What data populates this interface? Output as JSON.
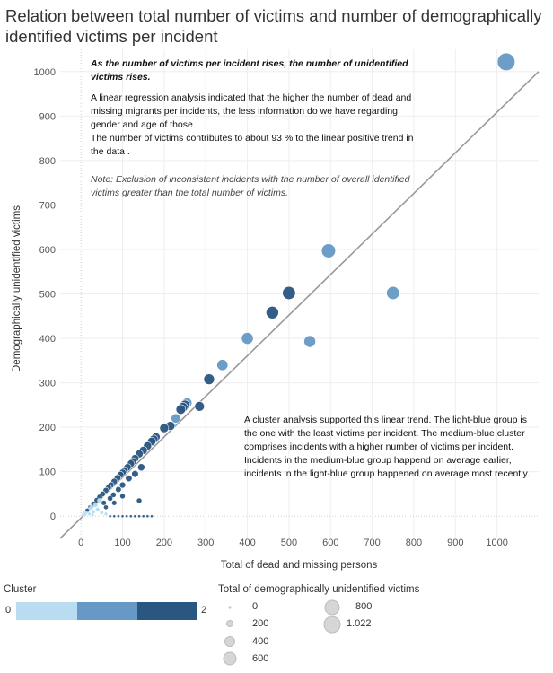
{
  "title": "Relation between total number of victims and number of demographically identified victims per incident",
  "annotation_top": {
    "italic_bold": "As the number of victims per incident rises, the number of unidentified victims rises.",
    "regression": "A linear regression analysis indicated that the higher the number of dead and missing migrants per incidents, the less information do we have regarding gender and age of those.",
    "contribution": "The number of victims contributes to about 93 % to the linear positive trend in the data .",
    "note": "Note: Exclusion of inconsistent incidents with the number of overall identified victims greater than the total number of victims."
  },
  "annotation_cluster": "A cluster analysis supported this linear trend. The light-blue group is the one with the least victims per incident. The medium-blue cluster comprises incidents with a higher number of victims per incident. Incidents in the medium-blue group happend on average earlier, incidents in the light-blue group happened on average most recently.",
  "legend": {
    "cluster_title": "Cluster",
    "cluster_min": "0",
    "cluster_max": "2",
    "cluster_colors": [
      "#b9dcf0",
      "#6699c6",
      "#2a5682"
    ],
    "size_title": "Total of demographically unidentified victims",
    "size_labels": [
      "0",
      "200",
      "400",
      "600",
      "800",
      "1.022"
    ]
  },
  "chart_data": {
    "type": "scatter",
    "xlabel": "Total of dead and missing persons",
    "ylabel": "Demographically unidentified victims",
    "xlim": [
      -50,
      1100
    ],
    "ylim": [
      -50,
      1050
    ],
    "xticks": [
      0,
      100,
      200,
      300,
      400,
      500,
      600,
      700,
      800,
      900,
      1000
    ],
    "yticks": [
      0,
      100,
      200,
      300,
      400,
      500,
      600,
      700,
      800,
      900,
      1000
    ],
    "trend_line": {
      "x": [
        -50,
        1100
      ],
      "y": [
        -50,
        1000
      ]
    },
    "points": [
      {
        "x": 1022,
        "y": 1022,
        "cluster": 1
      },
      {
        "x": 595,
        "y": 597,
        "cluster": 1
      },
      {
        "x": 750,
        "y": 502,
        "cluster": 1
      },
      {
        "x": 500,
        "y": 502,
        "cluster": 2
      },
      {
        "x": 460,
        "y": 458,
        "cluster": 2
      },
      {
        "x": 400,
        "y": 400,
        "cluster": 1
      },
      {
        "x": 550,
        "y": 393,
        "cluster": 1
      },
      {
        "x": 340,
        "y": 340,
        "cluster": 1
      },
      {
        "x": 308,
        "y": 308,
        "cluster": 2
      },
      {
        "x": 285,
        "y": 247,
        "cluster": 2
      },
      {
        "x": 255,
        "y": 255,
        "cluster": 1
      },
      {
        "x": 250,
        "y": 250,
        "cluster": 2
      },
      {
        "x": 245,
        "y": 245,
        "cluster": 2
      },
      {
        "x": 240,
        "y": 240,
        "cluster": 2
      },
      {
        "x": 228,
        "y": 220,
        "cluster": 1
      },
      {
        "x": 215,
        "y": 203,
        "cluster": 2
      },
      {
        "x": 200,
        "y": 198,
        "cluster": 2
      },
      {
        "x": 180,
        "y": 178,
        "cluster": 2
      },
      {
        "x": 175,
        "y": 173,
        "cluster": 2
      },
      {
        "x": 170,
        "y": 168,
        "cluster": 2
      },
      {
        "x": 160,
        "y": 158,
        "cluster": 2
      },
      {
        "x": 150,
        "y": 148,
        "cluster": 2
      },
      {
        "x": 140,
        "y": 140,
        "cluster": 2
      },
      {
        "x": 130,
        "y": 130,
        "cluster": 2
      },
      {
        "x": 125,
        "y": 123,
        "cluster": 2
      },
      {
        "x": 120,
        "y": 118,
        "cluster": 2
      },
      {
        "x": 112,
        "y": 110,
        "cluster": 2
      },
      {
        "x": 105,
        "y": 103,
        "cluster": 2
      },
      {
        "x": 100,
        "y": 98,
        "cluster": 2
      },
      {
        "x": 95,
        "y": 93,
        "cluster": 2
      },
      {
        "x": 88,
        "y": 86,
        "cluster": 2
      },
      {
        "x": 80,
        "y": 78,
        "cluster": 2
      },
      {
        "x": 72,
        "y": 70,
        "cluster": 2
      },
      {
        "x": 66,
        "y": 64,
        "cluster": 2
      },
      {
        "x": 60,
        "y": 58,
        "cluster": 2
      },
      {
        "x": 52,
        "y": 50,
        "cluster": 2
      },
      {
        "x": 45,
        "y": 43,
        "cluster": 2
      },
      {
        "x": 38,
        "y": 36,
        "cluster": 2
      },
      {
        "x": 30,
        "y": 28,
        "cluster": 2
      },
      {
        "x": 22,
        "y": 20,
        "cluster": 2
      },
      {
        "x": 15,
        "y": 13,
        "cluster": 2
      },
      {
        "x": 145,
        "y": 110,
        "cluster": 2
      },
      {
        "x": 130,
        "y": 95,
        "cluster": 2
      },
      {
        "x": 115,
        "y": 85,
        "cluster": 2
      },
      {
        "x": 100,
        "y": 70,
        "cluster": 2
      },
      {
        "x": 90,
        "y": 60,
        "cluster": 2
      },
      {
        "x": 78,
        "y": 48,
        "cluster": 2
      },
      {
        "x": 70,
        "y": 40,
        "cluster": 2
      },
      {
        "x": 55,
        "y": 30,
        "cluster": 2
      },
      {
        "x": 80,
        "y": 30,
        "cluster": 2
      },
      {
        "x": 60,
        "y": 20,
        "cluster": 2
      },
      {
        "x": 100,
        "y": 45,
        "cluster": 2
      },
      {
        "x": 140,
        "y": 35,
        "cluster": 2
      },
      {
        "x": 50,
        "y": 8,
        "cluster": 0
      },
      {
        "x": 40,
        "y": 15,
        "cluster": 0
      },
      {
        "x": 30,
        "y": 10,
        "cluster": 0
      },
      {
        "x": 25,
        "y": 20,
        "cluster": 0
      },
      {
        "x": 20,
        "y": 5,
        "cluster": 0
      },
      {
        "x": 18,
        "y": 15,
        "cluster": 0
      },
      {
        "x": 12,
        "y": 8,
        "cluster": 0
      },
      {
        "x": 10,
        "y": 4,
        "cluster": 0
      },
      {
        "x": 8,
        "y": 7,
        "cluster": 0
      },
      {
        "x": 5,
        "y": 3,
        "cluster": 0
      },
      {
        "x": 35,
        "y": 25,
        "cluster": 0
      },
      {
        "x": 45,
        "y": 35,
        "cluster": 0
      },
      {
        "x": 28,
        "y": 3,
        "cluster": 0
      },
      {
        "x": 60,
        "y": 5,
        "cluster": 0
      },
      {
        "x": 70,
        "y": 0,
        "cluster": 2
      },
      {
        "x": 80,
        "y": 0,
        "cluster": 2
      },
      {
        "x": 90,
        "y": 0,
        "cluster": 2
      },
      {
        "x": 100,
        "y": 0,
        "cluster": 2
      },
      {
        "x": 110,
        "y": 0,
        "cluster": 2
      },
      {
        "x": 120,
        "y": 0,
        "cluster": 2
      },
      {
        "x": 130,
        "y": 0,
        "cluster": 2
      },
      {
        "x": 140,
        "y": 0,
        "cluster": 2
      },
      {
        "x": 150,
        "y": 0,
        "cluster": 2
      },
      {
        "x": 160,
        "y": 0,
        "cluster": 2
      },
      {
        "x": 170,
        "y": 0,
        "cluster": 2
      }
    ]
  }
}
